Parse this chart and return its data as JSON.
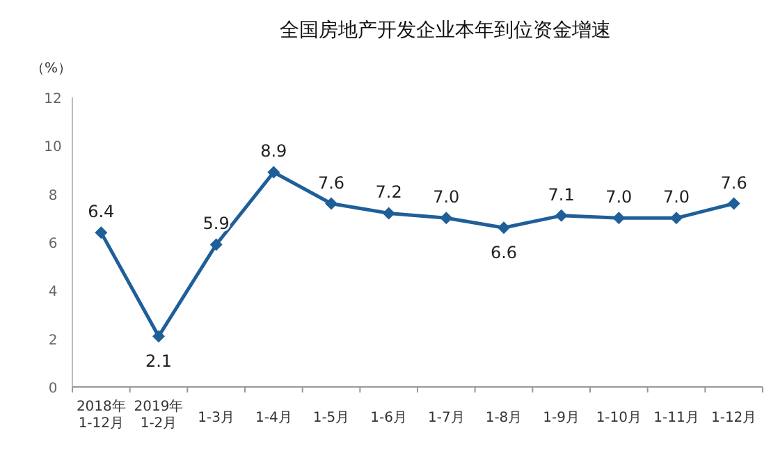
{
  "chart_data": {
    "type": "line",
    "title": "全国房地产开发企业本年到位资金增速",
    "ylabel": "（%）",
    "categories": [
      "2018年\n1-12月",
      "2019年\n1-2月",
      "1-3月",
      "1-4月",
      "1-5月",
      "1-6月",
      "1-7月",
      "1-8月",
      "1-9月",
      "1-10月",
      "1-11月",
      "1-12月"
    ],
    "series": [
      {
        "color": "#1f5f99",
        "values": [
          6.4,
          2.1,
          5.9,
          8.9,
          7.6,
          7.2,
          7.0,
          6.6,
          7.1,
          7.0,
          7.0,
          7.6
        ],
        "value_labels": [
          "6.4",
          "2.1",
          "5.9",
          "8.9",
          "7.6",
          "7.2",
          "7.0",
          "6.6",
          "7.1",
          "7.0",
          "7.0",
          "7.6"
        ]
      }
    ],
    "ylim": [
      0,
      12
    ],
    "yticks": [
      0,
      2,
      4,
      6,
      8,
      10,
      12
    ],
    "marker": "diamond",
    "grid": false
  }
}
